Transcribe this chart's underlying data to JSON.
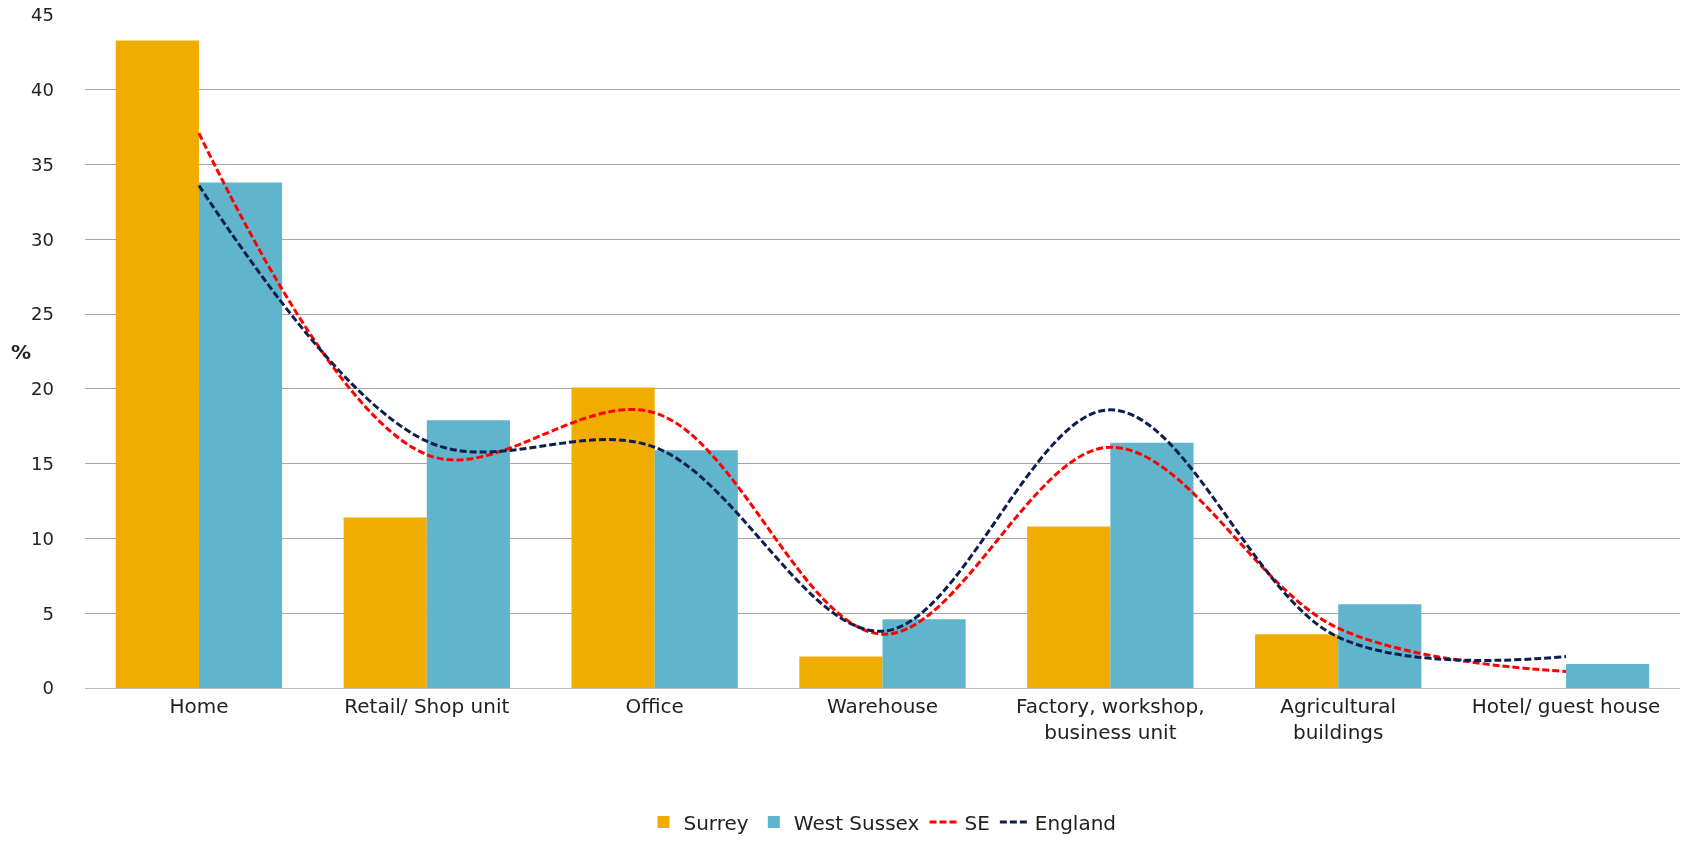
{
  "chart_data": {
    "type": "bar",
    "ylabel": "%",
    "categories": [
      "Home",
      "Retail/ Shop unit",
      "Office",
      "Warehouse",
      "Factory, workshop, business unit",
      "Agricultural buildings",
      "Hotel/ guest house"
    ],
    "series": [
      {
        "name": "Surrey",
        "color": "#f0ad00",
        "values": [
          43.3,
          11.4,
          20.1,
          2.1,
          10.8,
          3.6,
          null
        ]
      },
      {
        "name": "West Sussex",
        "color": "#60b4cc",
        "values": [
          33.8,
          17.9,
          15.9,
          4.6,
          16.4,
          5.6,
          1.6
        ]
      },
      {
        "name": "SE",
        "type": "line",
        "line_style": "dashed",
        "color": "#ff0000",
        "values": [
          37.1,
          15.6,
          18.4,
          3.6,
          16.1,
          4.0,
          1.1
        ]
      },
      {
        "name": "England",
        "type": "line",
        "line_style": "dashed",
        "color": "#0d1f4f",
        "values": [
          33.6,
          16.5,
          16.1,
          3.8,
          18.6,
          3.4,
          2.1
        ]
      }
    ],
    "ylim": [
      0,
      45
    ],
    "yticks": [
      0,
      5,
      10,
      15,
      20,
      25,
      30,
      35,
      40,
      45
    ],
    "grid": "y",
    "legend": "bottom",
    "marker": "none"
  }
}
